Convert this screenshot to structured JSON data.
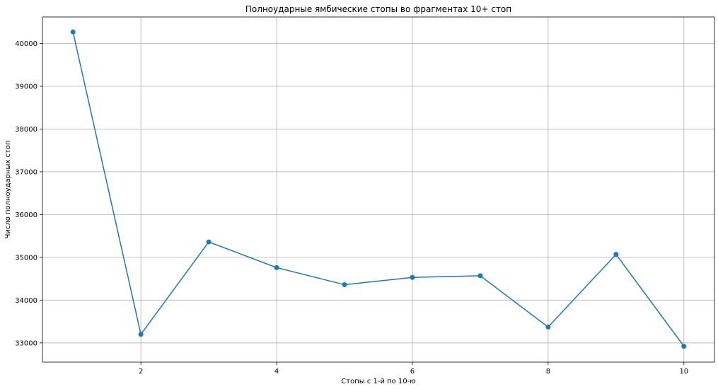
{
  "chart_data": {
    "type": "line",
    "title": "Полноударные ямбические стопы во фрагментах 10+ стоп",
    "xlabel": "Стопы с 1-й по 10-ю",
    "ylabel": "Число полноударных стоп",
    "x": [
      1,
      2,
      3,
      4,
      5,
      6,
      7,
      8,
      9,
      10
    ],
    "series": [
      {
        "values": [
          40270,
          33200,
          35360,
          34760,
          34360,
          34530,
          34570,
          33370,
          35070,
          32920
        ],
        "color": "#1f77b4",
        "marker": "circle"
      }
    ],
    "xlim": [
      0.55,
      10.45
    ],
    "ylim": [
      32550,
      40620
    ],
    "xticks": [
      2,
      4,
      6,
      8,
      10
    ],
    "yticks": [
      33000,
      34000,
      35000,
      36000,
      37000,
      38000,
      39000,
      40000
    ],
    "grid": true
  }
}
